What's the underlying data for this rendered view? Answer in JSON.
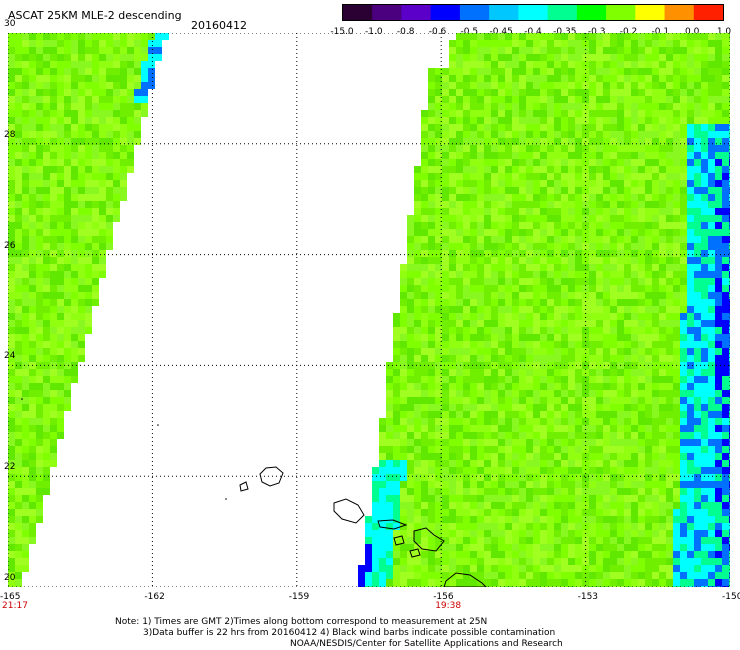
{
  "header": {
    "title": "ASCAT 25KM MLE-2 descending",
    "date": "20160412"
  },
  "colorbar": {
    "labels": [
      "-15.0",
      "-1.0",
      "-0.8",
      "-0.6",
      "-0.5",
      "-0.45",
      "-0.4",
      "-0.35",
      "-0.3",
      "-0.2",
      "-0.1",
      "0.0",
      "1.0"
    ],
    "colors": [
      "#2b0033",
      "#4b0080",
      "#5a00c8",
      "#0000ff",
      "#0070ff",
      "#00c8ff",
      "#00ffff",
      "#00ff90",
      "#00ff00",
      "#80ff00",
      "#ffff00",
      "#ff9000",
      "#ff2000"
    ]
  },
  "axes": {
    "x_ticks": [
      "-165",
      "-162",
      "-159",
      "-156",
      "-153",
      "-150"
    ],
    "y_ticks": [
      "30",
      "28",
      "26",
      "24",
      "22",
      "20"
    ],
    "times": [
      {
        "label": "21:17",
        "lon": -165
      },
      {
        "label": "19:38",
        "lon": -156
      }
    ]
  },
  "map": {
    "lon_range": [
      -165,
      -150
    ],
    "lat_range": [
      20,
      30
    ],
    "swath_west": {
      "top_east_lon": -161.8,
      "bottom_east_lon": -164.8
    },
    "swath_east": {
      "top_west_lon": -156.2,
      "bottom_west_lon": -157.8
    }
  },
  "footer": {
    "line1": "Note: 1) Times are GMT 2)Times along bottom correspond to measurement at 25N",
    "line2": "3)Data buffer is 22 hrs from 20160412 4) Black wind barbs indicate possible contamination",
    "line3": "NOAA/NESDIS/Center for Satellite Applications and Research"
  }
}
